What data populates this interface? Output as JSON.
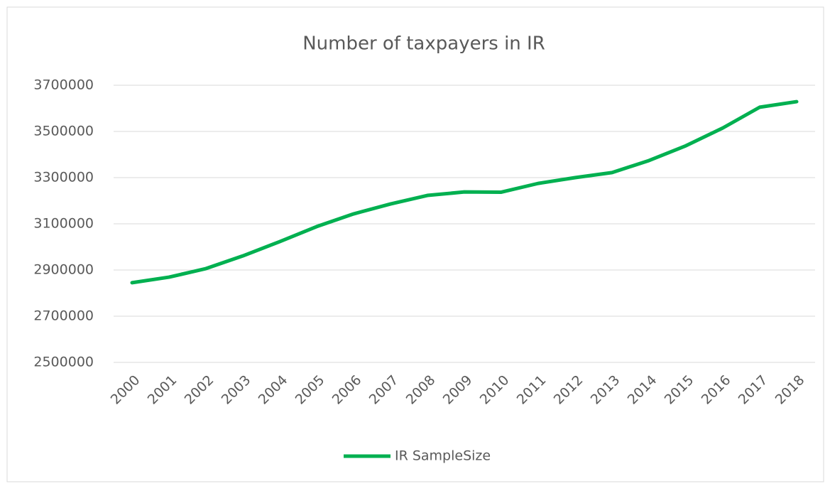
{
  "chart_data": {
    "type": "line",
    "title": "Number of taxpayers in IR",
    "categories": [
      "2000",
      "2001",
      "2002",
      "2003",
      "2004",
      "2005",
      "2006",
      "2007",
      "2008",
      "2009",
      "2010",
      "2011",
      "2012",
      "2013",
      "2014",
      "2015",
      "2016",
      "2017",
      "2018"
    ],
    "series": [
      {
        "name": "IR SampleSize",
        "color": "#00b050",
        "values": [
          2845000,
          2869000,
          2906000,
          2961000,
          3023000,
          3088000,
          3143000,
          3186000,
          3223000,
          3238000,
          3237000,
          3275000,
          3300000,
          3322000,
          3374000,
          3438000,
          3515000,
          3605000,
          3629000
        ]
      }
    ],
    "ylim": [
      2500000,
      3700000
    ],
    "yticks": [
      2500000,
      2700000,
      2900000,
      3100000,
      3300000,
      3500000,
      3700000
    ],
    "grid": true,
    "legend": "bottom"
  }
}
